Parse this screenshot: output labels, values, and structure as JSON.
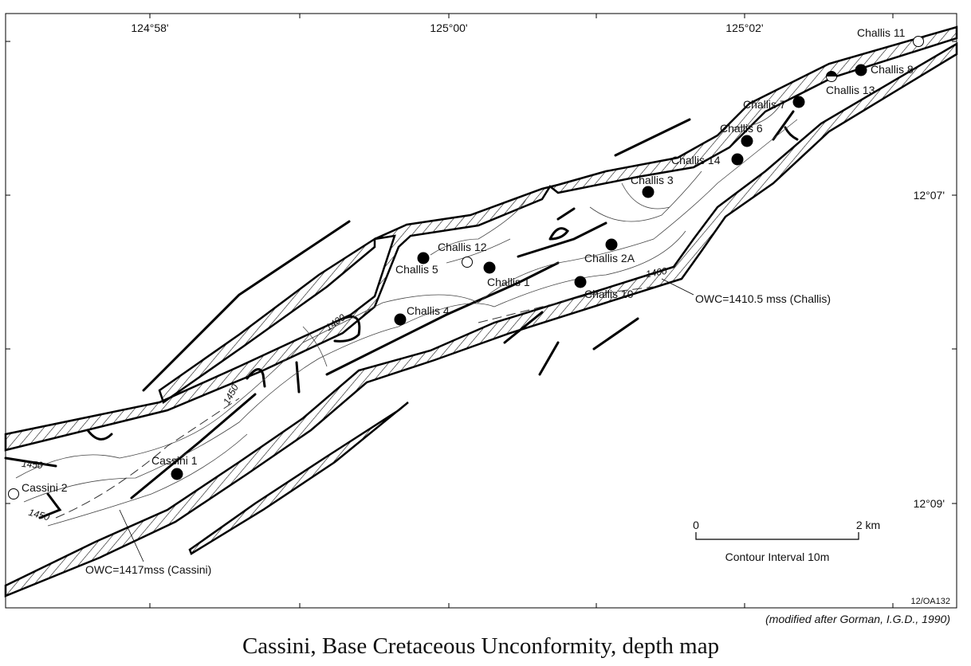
{
  "map": {
    "longitude_labels": [
      "124°58'",
      "125°00'",
      "125°02'"
    ],
    "latitude_labels": [
      "12°07'",
      "12°09'"
    ],
    "wells": [
      "Challis 11",
      "Challis 8",
      "Challis 13",
      "Challis 7",
      "Challis 6",
      "Challis 14",
      "Challis 3",
      "Challis 12",
      "Challis 5",
      "Challis 1",
      "Challis 2A",
      "Challis 10",
      "Challis 4",
      "Cassini 1",
      "Cassini 2"
    ],
    "contour_labels": [
      "1400",
      "1400",
      "1450",
      "1450",
      "1450"
    ],
    "annotations": [
      "OWC=1410.5 mss (Challis)",
      "OWC=1417mss (Cassini)"
    ],
    "scale_bar": {
      "start": "0",
      "end": "2 km",
      "note": "Contour Interval 10m"
    },
    "figure_id": "12/OA132",
    "credit": "(modified after Gorman, I.G.D., 1990)",
    "caption": "Cassini, Base Cretaceous Unconformity, depth map"
  }
}
